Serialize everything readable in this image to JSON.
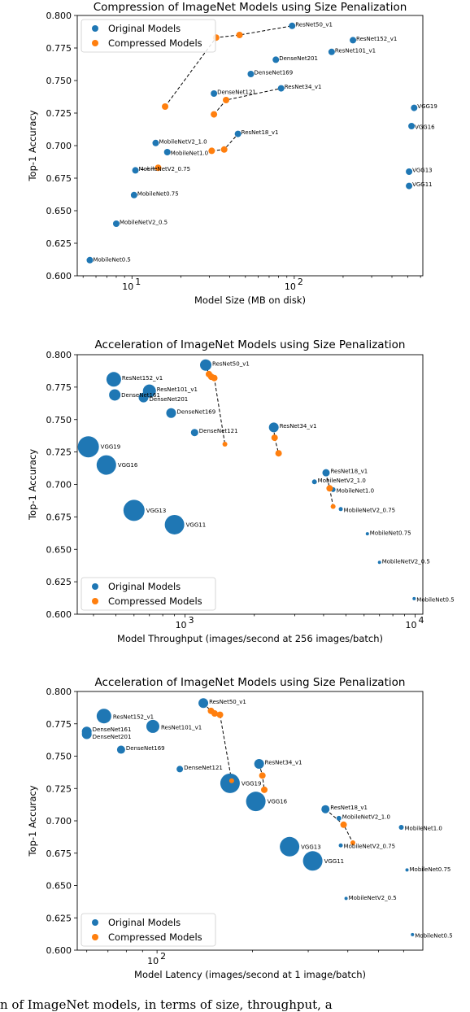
{
  "caption": "n of ImageNet models, in terms of size, throughput, a",
  "colors": {
    "original": "#1f77b4",
    "compressed": "#ff7f0e"
  },
  "chart_data": [
    {
      "type": "scatter",
      "title": "Compression of ImageNet Models using Size Penalization",
      "xlabel": "Model Size (MB on disk)",
      "ylabel": "Top-1 Accuracy",
      "xscale": "log",
      "xlim": [
        4.6,
        620
      ],
      "ylim": [
        0.6,
        0.8
      ],
      "yticks": [
        "0.600",
        "0.625",
        "0.650",
        "0.675",
        "0.700",
        "0.725",
        "0.750",
        "0.775",
        "0.800"
      ],
      "xticks": [
        {
          "v": 10,
          "base": "10",
          "exp": "1"
        },
        {
          "v": 100,
          "base": "10",
          "exp": "2"
        }
      ],
      "legend": {
        "placement": "top-left",
        "entries": [
          "Original Models",
          "Compressed Models"
        ]
      },
      "original": [
        {
          "name": "ResNet50_v1",
          "x": 97,
          "y": 0.792,
          "size": 4
        },
        {
          "name": "ResNet152_v1",
          "x": 230,
          "y": 0.781,
          "size": 4
        },
        {
          "name": "ResNet101_v1",
          "x": 170,
          "y": 0.772,
          "size": 4
        },
        {
          "name": "DenseNet201",
          "x": 77,
          "y": 0.766,
          "size": 4
        },
        {
          "name": "DenseNet169",
          "x": 54,
          "y": 0.755,
          "size": 4
        },
        {
          "name": "DenseNet121",
          "x": 32,
          "y": 0.74,
          "size": 4
        },
        {
          "name": "ResNet34_v1",
          "x": 83,
          "y": 0.744,
          "size": 4
        },
        {
          "name": "VGG19",
          "x": 548,
          "y": 0.729,
          "size": 4
        },
        {
          "name": "VGG16",
          "x": 528,
          "y": 0.715,
          "size": 4
        },
        {
          "name": "ResNet18_v1",
          "x": 45,
          "y": 0.709,
          "size": 4
        },
        {
          "name": "MobileNetV2_1.0",
          "x": 14,
          "y": 0.702,
          "size": 4
        },
        {
          "name": "MobileNet1.0",
          "x": 16.5,
          "y": 0.695,
          "size": 4
        },
        {
          "name": "MobileNetV2_0.75",
          "x": 10.5,
          "y": 0.681,
          "size": 4
        },
        {
          "name": "VGG13",
          "x": 510,
          "y": 0.68,
          "size": 4
        },
        {
          "name": "VGG11",
          "x": 510,
          "y": 0.669,
          "size": 4
        },
        {
          "name": "MobileNet0.75",
          "x": 10.3,
          "y": 0.662,
          "size": 4
        },
        {
          "name": "MobileNetV2_0.5",
          "x": 8,
          "y": 0.64,
          "size": 4
        },
        {
          "name": "MobileNet0.5",
          "x": 5.5,
          "y": 0.612,
          "size": 4
        }
      ],
      "compressed": [
        {
          "x": 16,
          "y": 0.73,
          "size": 4
        },
        {
          "x": 33,
          "y": 0.783,
          "size": 4
        },
        {
          "x": 46,
          "y": 0.785,
          "size": 4
        },
        {
          "x": 32,
          "y": 0.724,
          "size": 4
        },
        {
          "x": 38,
          "y": 0.735,
          "size": 4
        },
        {
          "x": 31,
          "y": 0.696,
          "size": 4
        },
        {
          "x": 37,
          "y": 0.697,
          "size": 4
        },
        {
          "x": 14.5,
          "y": 0.683,
          "size": 4
        }
      ],
      "dashed": [
        [
          [
            16,
            0.73
          ],
          [
            33,
            0.783
          ],
          [
            46,
            0.785
          ],
          [
            97,
            0.792
          ]
        ],
        [
          [
            32,
            0.724
          ],
          [
            38,
            0.735
          ],
          [
            83,
            0.744
          ]
        ],
        [
          [
            31,
            0.696
          ],
          [
            37,
            0.697
          ],
          [
            45,
            0.709
          ]
        ],
        [
          [
            10.5,
            0.681
          ],
          [
            14.5,
            0.683
          ]
        ]
      ]
    },
    {
      "type": "scatter",
      "title": "Acceleration of ImageNet Models using Size Penalization",
      "xlabel": "Model Throughput (images/second at 256 images/batch)",
      "ylabel": "Top-1 Accuracy",
      "xscale": "log",
      "xlim": [
        340,
        10800
      ],
      "ylim": [
        0.6,
        0.8
      ],
      "yticks": [
        "0.600",
        "0.625",
        "0.650",
        "0.675",
        "0.700",
        "0.725",
        "0.750",
        "0.775",
        "0.800"
      ],
      "xticks": [
        {
          "v": 1000,
          "base": "10",
          "exp": "3"
        },
        {
          "v": 10000,
          "base": "10",
          "exp": "4"
        }
      ],
      "legend": {
        "placement": "bottom-left",
        "entries": [
          "Original Models",
          "Compressed Models"
        ]
      },
      "original": [
        {
          "name": "ResNet50_v1",
          "x": 1230,
          "y": 0.792,
          "size": 7
        },
        {
          "name": "ResNet152_v1",
          "x": 490,
          "y": 0.781,
          "size": 9
        },
        {
          "name": "ResNet101_v1",
          "x": 700,
          "y": 0.772,
          "size": 8
        },
        {
          "name": "DenseNet161",
          "x": 495,
          "y": 0.769,
          "size": 7
        },
        {
          "name": "DenseNet201",
          "x": 660,
          "y": 0.767,
          "size": 6
        },
        {
          "name": "DenseNet169",
          "x": 870,
          "y": 0.755,
          "size": 6
        },
        {
          "name": "DenseNet121",
          "x": 1100,
          "y": 0.74,
          "size": 4.5
        },
        {
          "name": "ResNet34_v1",
          "x": 2430,
          "y": 0.744,
          "size": 6
        },
        {
          "name": "VGG19",
          "x": 380,
          "y": 0.729,
          "size": 13
        },
        {
          "name": "VGG16",
          "x": 455,
          "y": 0.715,
          "size": 12
        },
        {
          "name": "ResNet18_v1",
          "x": 4100,
          "y": 0.709,
          "size": 4.5
        },
        {
          "name": "MobileNetV2_1.0",
          "x": 3650,
          "y": 0.702,
          "size": 3
        },
        {
          "name": "MobileNet1.0",
          "x": 4400,
          "y": 0.696,
          "size": 3
        },
        {
          "name": "MobileNetV2_0.75",
          "x": 4750,
          "y": 0.681,
          "size": 2.5
        },
        {
          "name": "VGG13",
          "x": 600,
          "y": 0.68,
          "size": 13
        },
        {
          "name": "VGG11",
          "x": 900,
          "y": 0.669,
          "size": 12
        },
        {
          "name": "MobileNet0.75",
          "x": 6200,
          "y": 0.662,
          "size": 2
        },
        {
          "name": "MobileNetV2_0.5",
          "x": 7000,
          "y": 0.64,
          "size": 2
        },
        {
          "name": "MobileNet0.5",
          "x": 9900,
          "y": 0.612,
          "size": 2
        }
      ],
      "compressed": [
        {
          "x": 1270,
          "y": 0.785,
          "size": 4
        },
        {
          "x": 1300,
          "y": 0.783,
          "size": 4
        },
        {
          "x": 1340,
          "y": 0.782,
          "size": 4
        },
        {
          "x": 1490,
          "y": 0.731,
          "size": 3
        },
        {
          "x": 2450,
          "y": 0.736,
          "size": 4
        },
        {
          "x": 2550,
          "y": 0.724,
          "size": 4
        },
        {
          "x": 4250,
          "y": 0.697,
          "size": 4
        },
        {
          "x": 4400,
          "y": 0.683,
          "size": 3
        }
      ],
      "dashed": [
        [
          [
            1230,
            0.792
          ],
          [
            1270,
            0.785
          ],
          [
            1300,
            0.783
          ],
          [
            1340,
            0.782
          ],
          [
            1490,
            0.731
          ]
        ],
        [
          [
            2430,
            0.744
          ],
          [
            2450,
            0.736
          ],
          [
            2550,
            0.724
          ]
        ],
        [
          [
            4100,
            0.709
          ],
          [
            4250,
            0.697
          ],
          [
            4400,
            0.683
          ]
        ]
      ]
    },
    {
      "type": "scatter",
      "title": "Acceleration of ImageNet Models using Size Penalization",
      "xlabel": "Model Latency (images/second at 1 image/batch)",
      "ylabel": "Top-1 Accuracy",
      "xscale": "log",
      "xlim": [
        56,
        690
      ],
      "ylim": [
        0.6,
        0.8
      ],
      "yticks": [
        "0.600",
        "0.625",
        "0.650",
        "0.675",
        "0.700",
        "0.725",
        "0.750",
        "0.775",
        "0.800"
      ],
      "xticks": [
        {
          "v": 100,
          "base": "10",
          "exp": "2"
        }
      ],
      "legend": {
        "placement": "bottom-left",
        "entries": [
          "Original Models",
          "Compressed Models"
        ]
      },
      "original": [
        {
          "name": "ResNet50_v1",
          "x": 140,
          "y": 0.791,
          "size": 6
        },
        {
          "name": "ResNet152_v1",
          "x": 68,
          "y": 0.781,
          "size": 9
        },
        {
          "name": "ResNet101_v1",
          "x": 97,
          "y": 0.773,
          "size": 8
        },
        {
          "name": "DenseNet161",
          "x": 60,
          "y": 0.769,
          "size": 6
        },
        {
          "name": "DenseNet201",
          "x": 60,
          "y": 0.767,
          "size": 6
        },
        {
          "name": "DenseNet169",
          "x": 77,
          "y": 0.755,
          "size": 5
        },
        {
          "name": "DenseNet121",
          "x": 118,
          "y": 0.74,
          "size": 4
        },
        {
          "name": "ResNet34_v1",
          "x": 210,
          "y": 0.744,
          "size": 6
        },
        {
          "name": "VGG19",
          "x": 170,
          "y": 0.729,
          "size": 12
        },
        {
          "name": "VGG16",
          "x": 205,
          "y": 0.715,
          "size": 12
        },
        {
          "name": "ResNet18_v1",
          "x": 340,
          "y": 0.709,
          "size": 5
        },
        {
          "name": "MobileNetV2_1.0",
          "x": 375,
          "y": 0.702,
          "size": 3
        },
        {
          "name": "MobileNet1.0",
          "x": 590,
          "y": 0.695,
          "size": 3
        },
        {
          "name": "MobileNetV2_0.75",
          "x": 380,
          "y": 0.681,
          "size": 2.5
        },
        {
          "name": "VGG13",
          "x": 262,
          "y": 0.68,
          "size": 12
        },
        {
          "name": "VGG11",
          "x": 310,
          "y": 0.669,
          "size": 12
        },
        {
          "name": "MobileNet0.75",
          "x": 615,
          "y": 0.662,
          "size": 2
        },
        {
          "name": "MobileNetV2_0.5",
          "x": 395,
          "y": 0.64,
          "size": 2
        },
        {
          "name": "MobileNet0.5",
          "x": 640,
          "y": 0.612,
          "size": 2
        }
      ],
      "compressed": [
        {
          "x": 148,
          "y": 0.785,
          "size": 4
        },
        {
          "x": 152,
          "y": 0.783,
          "size": 4
        },
        {
          "x": 158,
          "y": 0.782,
          "size": 4
        },
        {
          "x": 172,
          "y": 0.731,
          "size": 3
        },
        {
          "x": 215,
          "y": 0.735,
          "size": 4
        },
        {
          "x": 218,
          "y": 0.724,
          "size": 4
        },
        {
          "x": 388,
          "y": 0.697,
          "size": 4
        },
        {
          "x": 415,
          "y": 0.683,
          "size": 3
        }
      ],
      "dashed": [
        [
          [
            140,
            0.791
          ],
          [
            148,
            0.785
          ],
          [
            152,
            0.783
          ],
          [
            158,
            0.782
          ],
          [
            172,
            0.731
          ]
        ],
        [
          [
            210,
            0.744
          ],
          [
            215,
            0.735
          ],
          [
            218,
            0.724
          ]
        ],
        [
          [
            340,
            0.709
          ],
          [
            388,
            0.697
          ],
          [
            415,
            0.683
          ]
        ]
      ]
    }
  ]
}
